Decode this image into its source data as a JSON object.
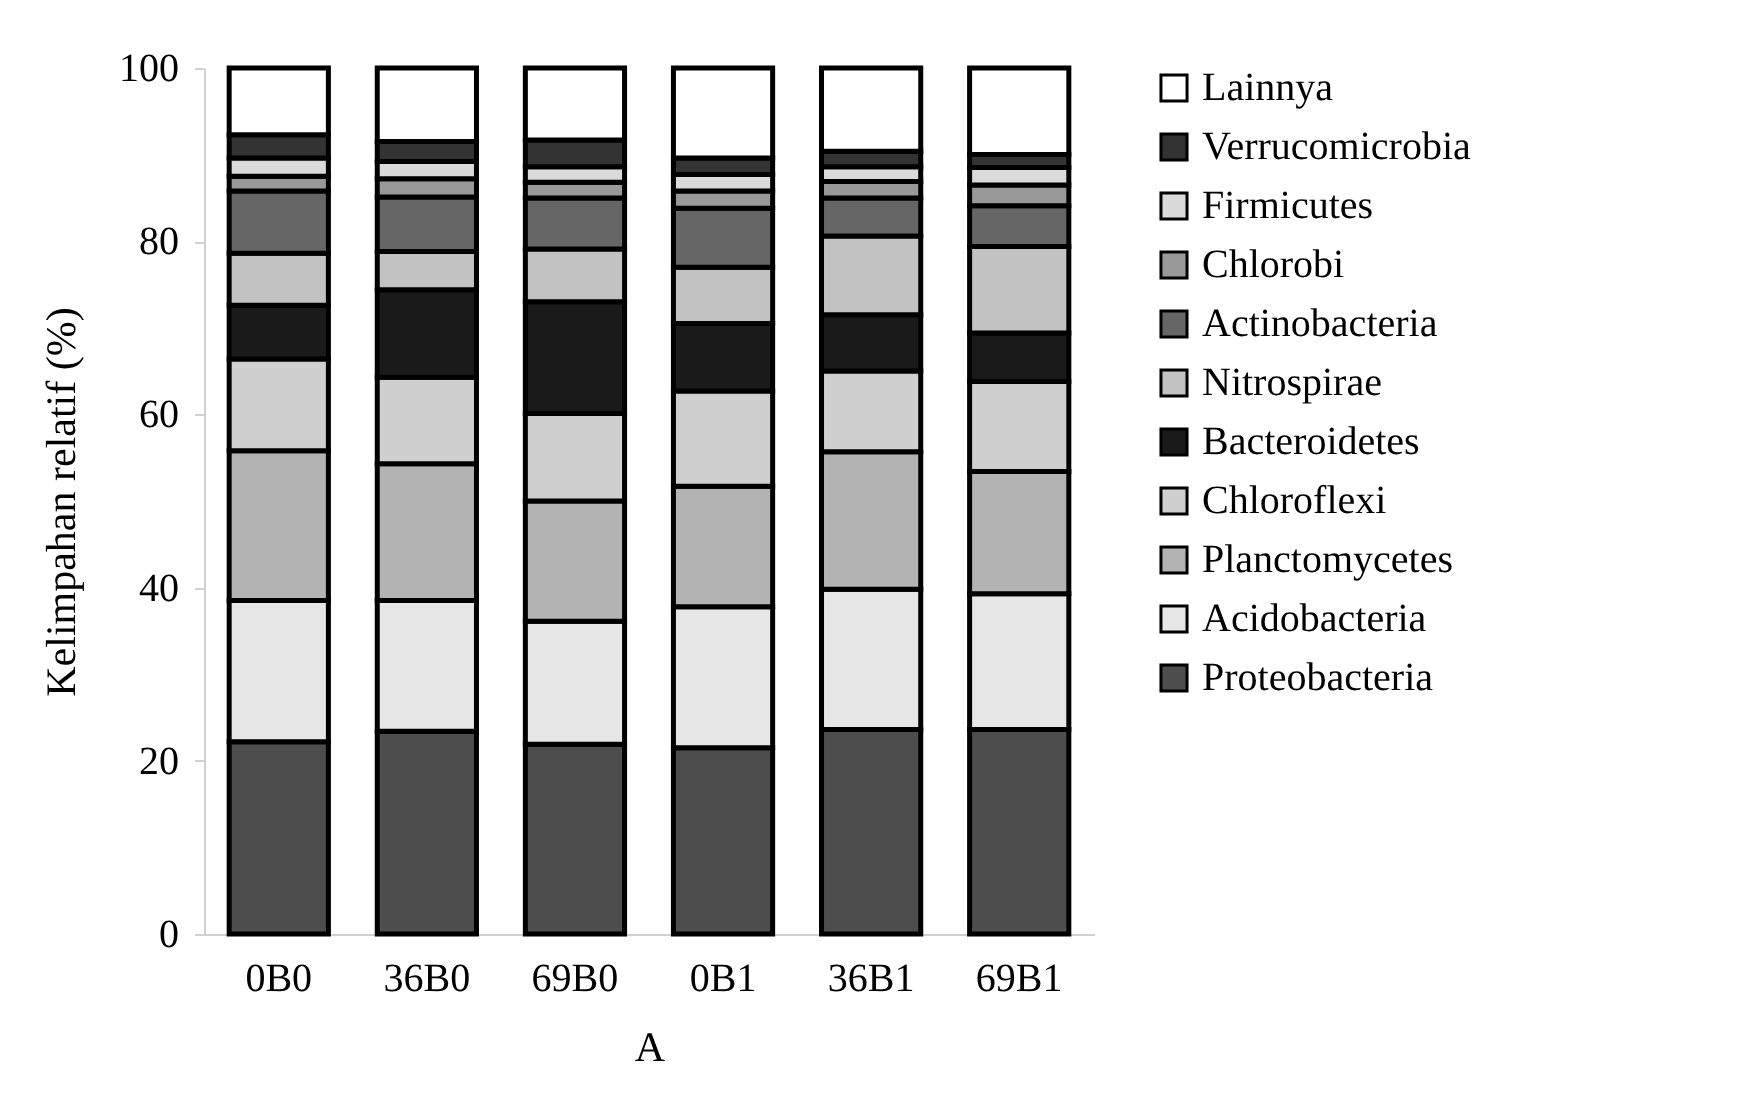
{
  "chart_data": {
    "type": "bar",
    "stacked": true,
    "xlabel": "A",
    "ylabel": "Kelimpahan relatif (%)",
    "categories": [
      "0B0",
      "36B0",
      "69B0",
      "0B1",
      "36B1",
      "69B1"
    ],
    "ylim": [
      0,
      100
    ],
    "yticks": [
      0,
      20,
      40,
      60,
      80,
      100
    ],
    "grid": false,
    "legend": "right",
    "series": [
      {
        "name": "Proteobacteria",
        "color": "#4d4d4d",
        "values": [
          22.2,
          23.4,
          21.9,
          21.5,
          23.6,
          23.6
        ]
      },
      {
        "name": "Acidobacteria",
        "color": "#e6e6e6",
        "values": [
          16.3,
          15.1,
          14.2,
          16.3,
          16.2,
          15.7
        ]
      },
      {
        "name": "Planctomycetes",
        "color": "#b3b3b3",
        "values": [
          17.3,
          15.8,
          13.9,
          13.9,
          15.9,
          14.1
        ]
      },
      {
        "name": "Chloroflexi",
        "color": "#cfcfcf",
        "values": [
          10.6,
          10.0,
          10.1,
          11.0,
          9.3,
          10.4
        ]
      },
      {
        "name": "Bacteroidetes",
        "color": "#1a1a1a",
        "values": [
          6.2,
          10.1,
          12.9,
          7.8,
          6.5,
          5.6
        ]
      },
      {
        "name": "Nitrospirae",
        "color": "#c2c2c2",
        "values": [
          6.0,
          4.4,
          6.1,
          6.5,
          9.1,
          10.0
        ]
      },
      {
        "name": "Actinobacteria",
        "color": "#666666",
        "values": [
          7.2,
          6.3,
          5.9,
          6.8,
          4.4,
          4.7
        ]
      },
      {
        "name": "Chlorobi",
        "color": "#999999",
        "values": [
          1.7,
          2.1,
          1.8,
          2.0,
          1.9,
          2.4
        ]
      },
      {
        "name": "Firmicutes",
        "color": "#dadada",
        "values": [
          2.1,
          2.0,
          1.8,
          1.9,
          1.7,
          2.0
        ]
      },
      {
        "name": "Verrucomicrobia",
        "color": "#333333",
        "values": [
          2.7,
          2.3,
          3.1,
          1.9,
          1.8,
          1.5
        ]
      },
      {
        "name": "Lainnya",
        "color": "#ffffff",
        "values": [
          7.7,
          8.5,
          8.3,
          10.4,
          9.6,
          10.0
        ]
      }
    ]
  }
}
